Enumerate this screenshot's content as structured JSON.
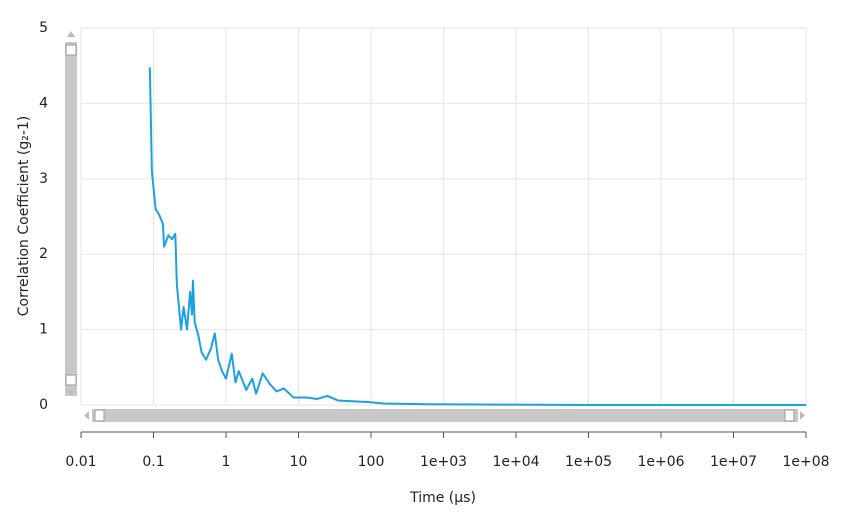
{
  "chart_data": {
    "type": "line",
    "x_label": "Time (μs)",
    "y_label": "Correlation Coefficient (g₂-1)",
    "xscale": "log",
    "grid": true,
    "xlim": [
      0.01,
      100000000
    ],
    "ylim": [
      0,
      5
    ],
    "xticks": [
      0.01,
      0.1,
      1,
      10,
      100,
      {
        "value": 1000,
        "label": "1e+03"
      },
      {
        "value": 10000,
        "label": "1e+04"
      },
      {
        "value": 100000,
        "label": "1e+05"
      },
      {
        "value": 1000000,
        "label": "1e+06"
      },
      {
        "value": 10000000,
        "label": "1e+07"
      },
      {
        "value": 100000000,
        "label": "1e+08"
      }
    ],
    "yticks": [
      0,
      1,
      2,
      3,
      4,
      5
    ],
    "series": [
      {
        "color": "#1ba1e2",
        "x": [
          0.089,
          0.095,
          0.107,
          0.12,
          0.135,
          0.14,
          0.16,
          0.18,
          0.2,
          0.21,
          0.24,
          0.26,
          0.29,
          0.32,
          0.34,
          0.35,
          0.37,
          0.42,
          0.46,
          0.53,
          0.62,
          0.7,
          0.78,
          0.88,
          1.0,
          1.2,
          1.35,
          1.5,
          1.9,
          2.3,
          2.6,
          3.2,
          4.0,
          5.0,
          6.3,
          8.5,
          13,
          18,
          25,
          35,
          55,
          90,
          150,
          600,
          6000,
          100000,
          100000000
        ],
        "values": [
          4.48,
          3.1,
          2.6,
          2.52,
          2.4,
          2.1,
          2.25,
          2.2,
          2.27,
          1.6,
          1.0,
          1.3,
          1.0,
          1.5,
          1.2,
          1.65,
          1.1,
          0.9,
          0.7,
          0.6,
          0.75,
          0.95,
          0.6,
          0.45,
          0.35,
          0.68,
          0.3,
          0.45,
          0.2,
          0.35,
          0.15,
          0.42,
          0.28,
          0.18,
          0.22,
          0.1,
          0.1,
          0.08,
          0.12,
          0.06,
          0.05,
          0.04,
          0.02,
          0.01,
          0.005,
          0,
          0
        ]
      }
    ]
  }
}
